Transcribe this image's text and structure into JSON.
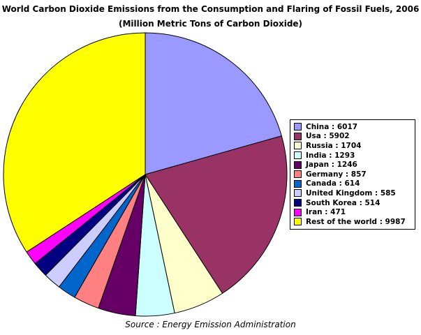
{
  "chart_data": {
    "type": "pie",
    "title": "World Carbon Dioxide Emissions from the Consumption and Flaring of Fossil Fuels, 2006",
    "subtitle": "(Million Metric Tons of Carbon Dioxide)",
    "source": "Source : Energy Emission Administration",
    "legend_position": "right",
    "slices": [
      {
        "label": "China",
        "value": 6017,
        "color": "#9999ff",
        "legend": "China : 6017"
      },
      {
        "label": "Usa",
        "value": 5902,
        "color": "#993366",
        "legend": "Usa : 5902"
      },
      {
        "label": "Russia",
        "value": 1704,
        "color": "#ffffcc",
        "legend": "Russia : 1704"
      },
      {
        "label": "India",
        "value": 1293,
        "color": "#ccffff",
        "legend": "India : 1293"
      },
      {
        "label": "Japan",
        "value": 1246,
        "color": "#660066",
        "legend": "Japan : 1246"
      },
      {
        "label": "Germany",
        "value": 857,
        "color": "#ff8080",
        "legend": "Germany : 857"
      },
      {
        "label": "Canada",
        "value": 614,
        "color": "#0066cc",
        "legend": "Canada : 614"
      },
      {
        "label": "United Kingdom",
        "value": 585,
        "color": "#ccccff",
        "legend": "United Kingdom : 585"
      },
      {
        "label": "South Korea",
        "value": 514,
        "color": "#000080",
        "legend": "South Korea : 514"
      },
      {
        "label": "Iran",
        "value": 471,
        "color": "#ff00ff",
        "legend": "Iran : 471"
      },
      {
        "label": "Rest of the world",
        "value": 9987,
        "color": "#ffff00",
        "legend": "Rest of the world : 9987"
      }
    ]
  }
}
